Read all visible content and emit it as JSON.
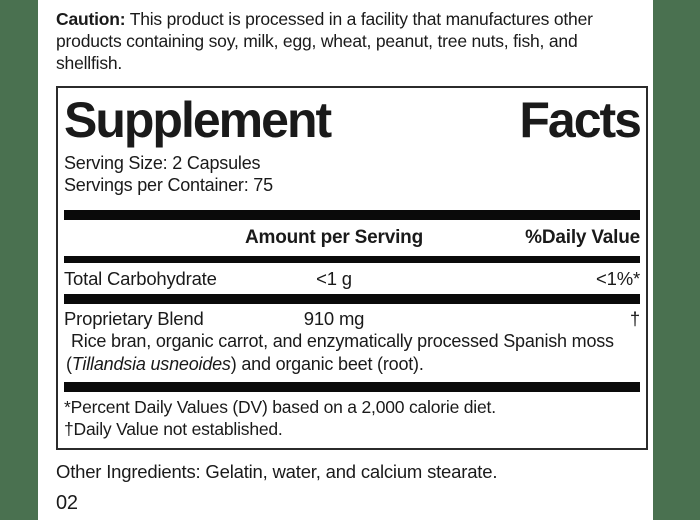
{
  "page": {
    "background_color": "#ffffff",
    "side_bar_color": "#4a7150",
    "text_color": "#1a1a1a"
  },
  "caution": {
    "label": "Caution:",
    "line1": " This product is processed in a facility that manufactures other",
    "line2": "products containing soy, milk, egg, wheat, peanut, tree nuts, fish, and",
    "line3": "shellfish."
  },
  "panel": {
    "title_word1": "Supplement",
    "title_word2": "Facts",
    "serving_size": "Serving Size: 2 Capsules",
    "servings_per_container": "Servings per Container: 75",
    "columns": {
      "amount_header": "Amount per Serving",
      "dv_header": "%Daily Value"
    },
    "rows": [
      {
        "name": "Total Carbohydrate",
        "amount": "<1 g",
        "dv": "<1%*"
      },
      {
        "name": "Proprietary Blend",
        "amount": "910 mg",
        "dv": "†"
      }
    ],
    "blend_description": {
      "line1": "Rice bran, organic carrot, and enzymatically processed Spanish moss",
      "paren_open": "(",
      "italic": "Tillandsia usneoides",
      "line2_rest": ") and organic beet (root)."
    },
    "footnotes": [
      "*Percent Daily Values (DV) based on a 2,000 calorie diet.",
      "†Daily Value not established."
    ]
  },
  "footer": {
    "other_ingredients": "Other Ingredients: Gelatin, water, and calcium stearate.",
    "code": "02"
  }
}
